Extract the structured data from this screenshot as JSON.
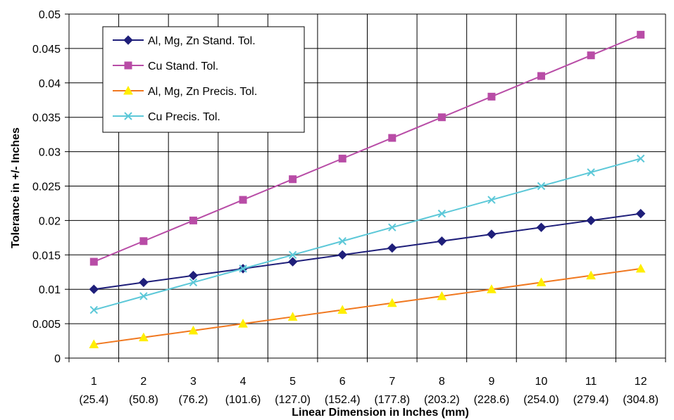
{
  "chart_data": {
    "type": "line",
    "title": "",
    "xlabel": "Linear Dimension in Inches (mm)",
    "ylabel": "Tolerance in +/- Inches",
    "categories": [
      "1",
      "2",
      "3",
      "4",
      "5",
      "6",
      "7",
      "8",
      "9",
      "10",
      "11",
      "12"
    ],
    "categories_sub": [
      "(25.4)",
      "(50.8)",
      "(76.2)",
      "(101.6)",
      "(127.0)",
      "(152.4)",
      "(177.8)",
      "(203.2)",
      "(228.6)",
      "(254.0)",
      "(279.4)",
      "(304.8)"
    ],
    "y_ticks": [
      "0",
      "0.005",
      "0.01",
      "0.015",
      "0.02",
      "0.025",
      "0.03",
      "0.035",
      "0.04",
      "0.045",
      "0.05"
    ],
    "ylim": [
      0,
      0.05
    ],
    "grid": true,
    "legend_position": "top-left",
    "series": [
      {
        "name": "Al, Mg, Zn Stand. Tol.",
        "color": "#1f1f7a",
        "marker": "diamond",
        "values": [
          0.01,
          0.011,
          0.012,
          0.013,
          0.014,
          0.015,
          0.016,
          0.017,
          0.018,
          0.019,
          0.02,
          0.021
        ]
      },
      {
        "name": "Cu Stand. Tol.",
        "color": "#b84ca6",
        "marker": "square",
        "values": [
          0.014,
          0.017,
          0.02,
          0.023,
          0.026,
          0.029,
          0.032,
          0.035,
          0.038,
          0.041,
          0.044,
          0.047
        ]
      },
      {
        "name": "Al, Mg, Zn Precis. Tol.",
        "color": "#f07820",
        "marker": "triangle",
        "marker_color": "#ffee00",
        "values": [
          0.002,
          0.003,
          0.004,
          0.005,
          0.006,
          0.007,
          0.008,
          0.009,
          0.01,
          0.011,
          0.012,
          0.013
        ]
      },
      {
        "name": "Cu Precis. Tol.",
        "color": "#5cc8d8",
        "marker": "x",
        "values": [
          0.007,
          0.009,
          0.011,
          0.013,
          0.015,
          0.017,
          0.019,
          0.021,
          0.023,
          0.025,
          0.027,
          0.029
        ]
      }
    ]
  }
}
